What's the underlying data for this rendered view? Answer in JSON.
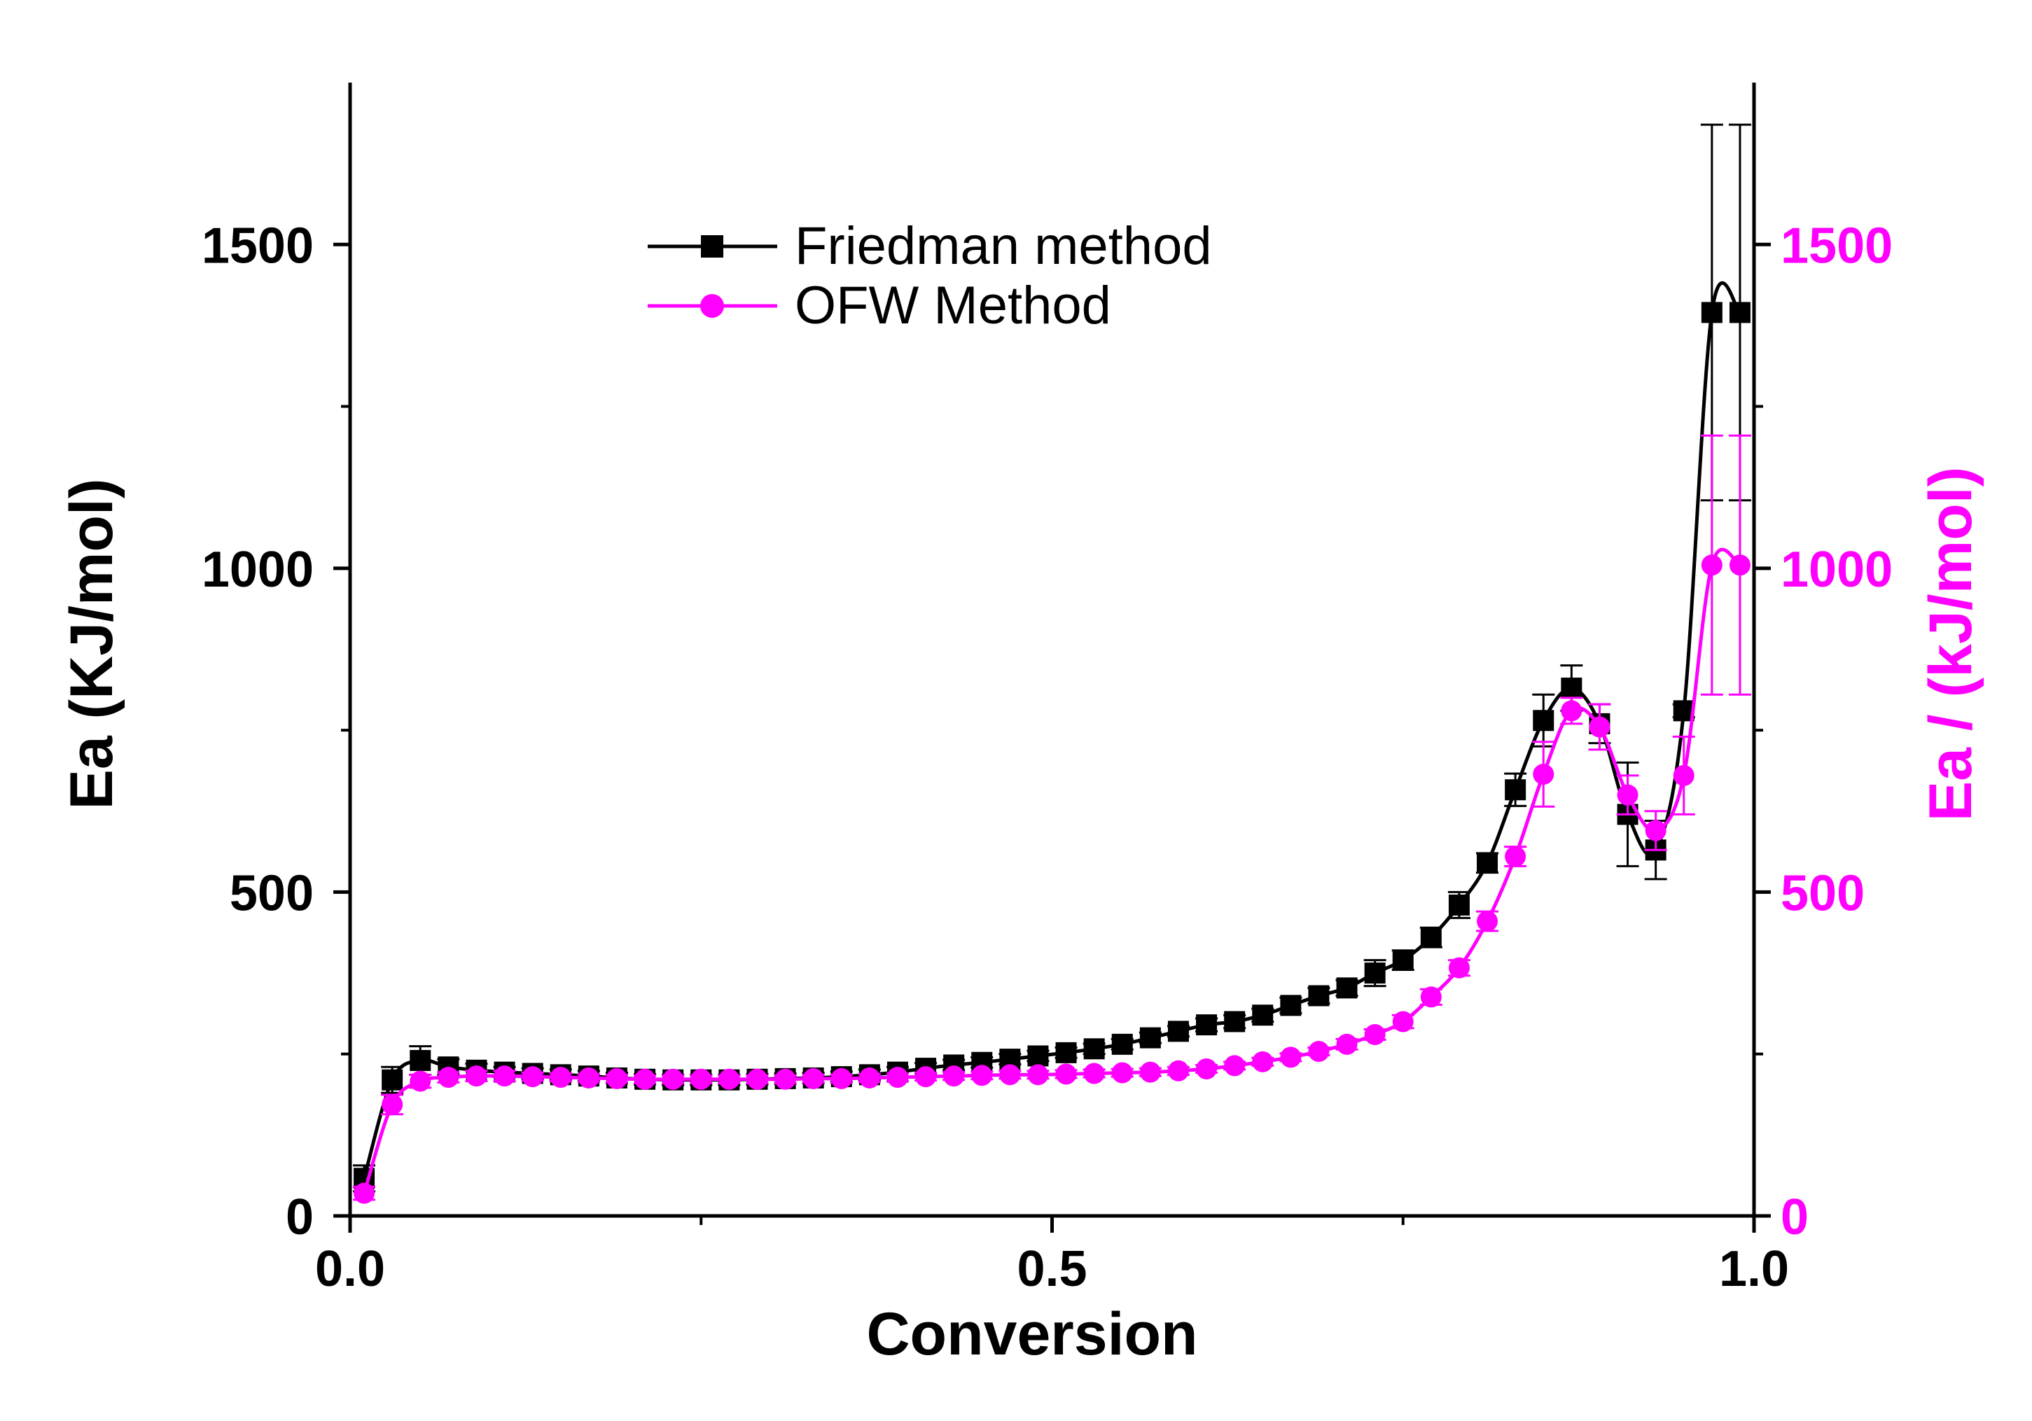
{
  "chart_data": {
    "type": "line",
    "title": "",
    "xlabel": "Conversion",
    "ylabel": "Ea (KJ/mol)",
    "ylabel_right": "Ea / (kJ/mol)",
    "xlim": [
      0.0,
      1.0
    ],
    "ylim": [
      0,
      1750
    ],
    "ylim_right": [
      0,
      1750
    ],
    "x_ticks": [
      "0.0",
      "0.5",
      "1.0"
    ],
    "x_tick_values": [
      0.0,
      0.5,
      1.0
    ],
    "y_ticks": [
      "0",
      "500",
      "1000",
      "1500"
    ],
    "y_tick_values": [
      0,
      500,
      1000,
      1500
    ],
    "y_ticks_right": [
      "0",
      "500",
      "1000",
      "1500"
    ],
    "legend_placement": "top-center",
    "colors": {
      "friedman": "#000000",
      "ofw": "#ff00ff",
      "axis": "#000000"
    },
    "x": [
      0.01,
      0.03,
      0.05,
      0.07,
      0.09,
      0.11,
      0.13,
      0.15,
      0.17,
      0.19,
      0.21,
      0.23,
      0.25,
      0.27,
      0.29,
      0.31,
      0.33,
      0.35,
      0.37,
      0.39,
      0.41,
      0.43,
      0.45,
      0.47,
      0.49,
      0.51,
      0.53,
      0.55,
      0.57,
      0.59,
      0.61,
      0.63,
      0.65,
      0.67,
      0.69,
      0.71,
      0.73,
      0.75,
      0.77,
      0.79,
      0.81,
      0.83,
      0.85,
      0.87,
      0.89,
      0.91,
      0.93,
      0.95,
      0.97,
      0.99
    ],
    "series": [
      {
        "name": "Friedman method",
        "marker": "square",
        "color": "#000000",
        "values": [
          58,
          210,
          240,
          230,
          225,
          222,
          220,
          218,
          216,
          213,
          211,
          210,
          210,
          210,
          211,
          212,
          213,
          215,
          218,
          222,
          228,
          233,
          237,
          242,
          247,
          252,
          258,
          265,
          275,
          285,
          295,
          300,
          310,
          325,
          340,
          352,
          375,
          395,
          430,
          480,
          545,
          658,
          765,
          815,
          760,
          620,
          565,
          780,
          1395,
          1395
        ],
        "errors": [
          20,
          20,
          22,
          12,
          10,
          8,
          8,
          8,
          8,
          8,
          8,
          8,
          8,
          8,
          8,
          8,
          8,
          8,
          8,
          8,
          8,
          8,
          8,
          8,
          8,
          8,
          8,
          8,
          8,
          8,
          10,
          10,
          10,
          12,
          12,
          12,
          20,
          15,
          15,
          20,
          15,
          25,
          40,
          35,
          30,
          80,
          45,
          10,
          290,
          290
        ]
      },
      {
        "name": "OFW Method",
        "marker": "circle",
        "color": "#ff00ff",
        "values": [
          35,
          172,
          208,
          214,
          216,
          216,
          215,
          214,
          213,
          212,
          211,
          211,
          211,
          211,
          211,
          211,
          212,
          212,
          213,
          214,
          215,
          216,
          217,
          218,
          218,
          219,
          220,
          221,
          222,
          224,
          227,
          232,
          238,
          245,
          254,
          265,
          280,
          300,
          338,
          383,
          455,
          555,
          682,
          780,
          755,
          650,
          595,
          680,
          1005,
          1005
        ],
        "errors": [
          10,
          15,
          10,
          8,
          8,
          8,
          6,
          6,
          6,
          6,
          6,
          6,
          6,
          6,
          6,
          6,
          6,
          6,
          6,
          6,
          6,
          6,
          6,
          6,
          6,
          6,
          6,
          6,
          6,
          6,
          6,
          6,
          6,
          6,
          6,
          8,
          8,
          10,
          12,
          12,
          15,
          15,
          50,
          20,
          35,
          30,
          30,
          60,
          200,
          200
        ]
      }
    ]
  }
}
